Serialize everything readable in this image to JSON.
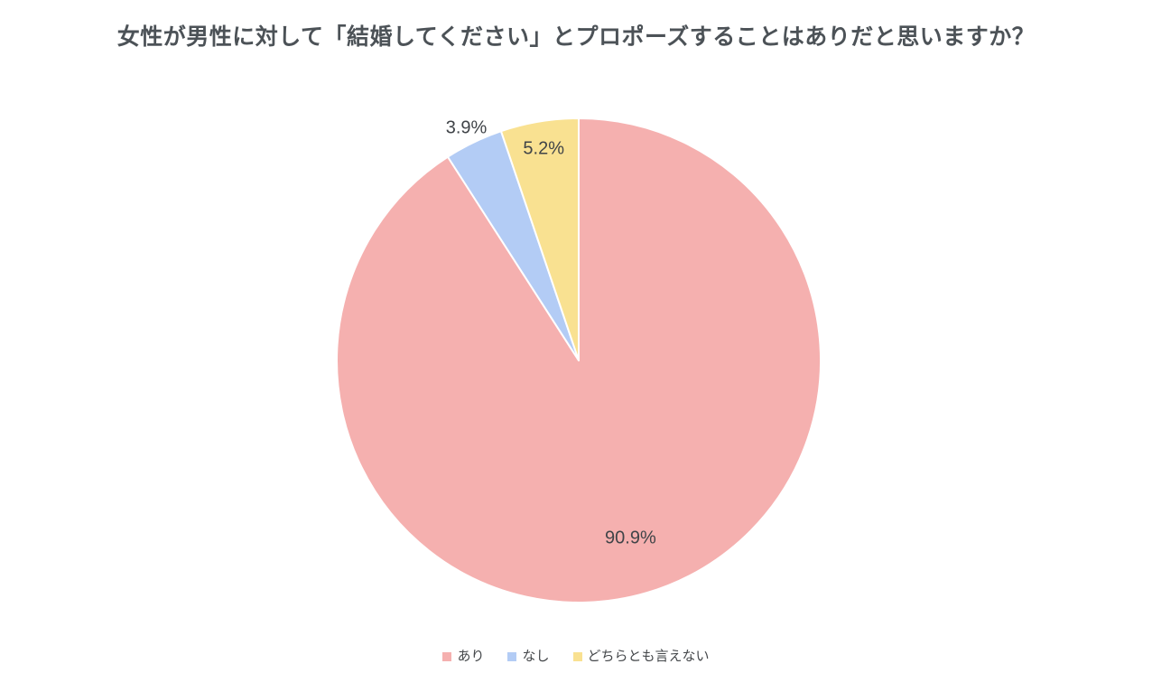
{
  "page": {
    "background": "#ffffff"
  },
  "chart_data": {
    "type": "pie",
    "title": "女性が男性に対して「結婚してください」とプロポーズすることはありだと思いますか？",
    "categories": [
      "あり",
      "なし",
      "どちらとも言えない"
    ],
    "values": [
      90.9,
      3.9,
      5.2
    ],
    "unit": "%",
    "slices": [
      {
        "label": "あり",
        "value": 90.9,
        "display": "90.9%",
        "color": "#f5b0af",
        "label_placement": "inside"
      },
      {
        "label": "なし",
        "value": 3.9,
        "display": "3.9%",
        "color": "#b3ccf5",
        "label_placement": "outside"
      },
      {
        "label": "どちらとも言えない",
        "value": 5.2,
        "display": "5.2%",
        "color": "#f9e191",
        "label_placement": "inside"
      }
    ],
    "start_angle_deg": 0,
    "direction": "clockwise",
    "slice_border_color": "#ffffff",
    "legend_position": "bottom-center",
    "title_color": "#4c5257",
    "label_color": "#404448",
    "legend_text_color": "#45484b",
    "grid": "off"
  }
}
